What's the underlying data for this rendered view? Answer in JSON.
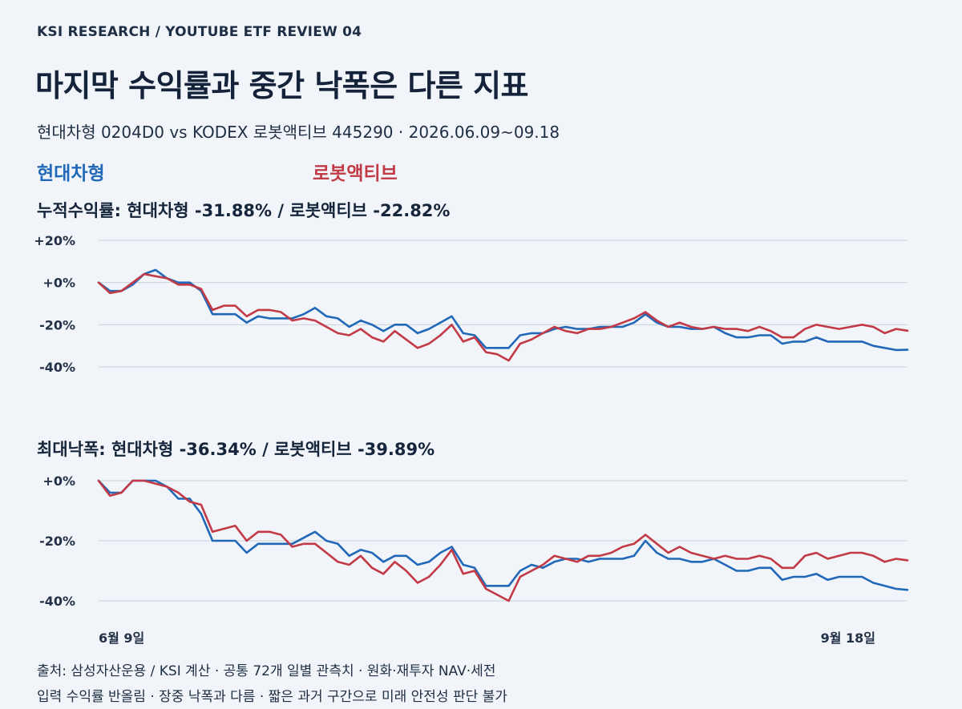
{
  "header": {
    "kicker": "KSI RESEARCH / YOUTUBE ETF REVIEW 04",
    "title": "마지막 수익률과 중간 낙폭은 다른 지표",
    "subtitle": "현대차형 0204D0 vs KODEX 로봇액티브 445290 · 2026.06.09~09.18"
  },
  "legend": [
    {
      "label": "현대차형",
      "color": "#2169b8"
    },
    {
      "label": "로봇액티브",
      "color": "#c23a46"
    }
  ],
  "footer": {
    "line1": "출처: 삼성자산운용 / KSI 계산 · 공통 72개 일별 관측치 · 원화·재투자 NAV·세전",
    "line2": "입력 수익률 반올림 · 장중 낙폭과 다름 · 짧은 과거 구간으로 미래 안전성 판단 불가"
  },
  "chart_data": [
    {
      "type": "line",
      "title": "누적수익률: 현대차형 -31.88% / 로봇액티브 -22.82%",
      "y_tick_labels": [
        "+20%",
        "+0%",
        "-20%",
        "-40%"
      ],
      "y_ticks": [
        20,
        0,
        -20,
        -40
      ],
      "ylim": [
        -40,
        20
      ],
      "x_tick_labels": [
        "6월 9일",
        "9월 18일"
      ],
      "x_tick_index": [
        0,
        71
      ],
      "grid": true,
      "series": [
        {
          "name": "현대차형",
          "color": "#2169b8",
          "values": [
            0,
            -4,
            -4,
            -1,
            4,
            6,
            2,
            0,
            0,
            -4,
            -15,
            -15,
            -15,
            -19,
            -16,
            -17,
            -17,
            -17,
            -15,
            -12,
            -16,
            -17,
            -21,
            -18,
            -20,
            -23,
            -20,
            -20,
            -24,
            -22,
            -19,
            -16,
            -24,
            -25,
            -31,
            -31,
            -31,
            -25,
            -24,
            -24,
            -22,
            -21,
            -22,
            -22,
            -21,
            -21,
            -21,
            -19,
            -15,
            -19,
            -21,
            -21,
            -22,
            -22,
            -21,
            -24,
            -26,
            -26,
            -25,
            -25,
            -29,
            -28,
            -28,
            -26,
            -28,
            -28,
            -28,
            -28,
            -30,
            -31,
            -32,
            -31.88
          ]
        },
        {
          "name": "로봇액티브",
          "color": "#c23a46",
          "values": [
            0,
            -5,
            -4,
            0,
            4,
            3,
            2,
            -1,
            -1,
            -3,
            -13,
            -11,
            -11,
            -16,
            -13,
            -13,
            -14,
            -18,
            -17,
            -18,
            -21,
            -24,
            -25,
            -22,
            -26,
            -28,
            -23,
            -27,
            -31,
            -29,
            -25,
            -20,
            -28,
            -26,
            -33,
            -34,
            -37,
            -29,
            -27,
            -24,
            -21,
            -23,
            -24,
            -22,
            -22,
            -21,
            -19,
            -17,
            -14,
            -18,
            -21,
            -19,
            -21,
            -22,
            -21,
            -22,
            -22,
            -23,
            -21,
            -23,
            -26,
            -26,
            -22,
            -20,
            -21,
            -22,
            -21,
            -20,
            -21,
            -24,
            -22,
            -22.82
          ]
        }
      ]
    },
    {
      "type": "line",
      "title": "최대낙폭: 현대차형 -36.34% / 로봇액티브 -39.89%",
      "y_tick_labels": [
        "+0%",
        "-20%",
        "-40%"
      ],
      "y_ticks": [
        0,
        -20,
        -40
      ],
      "ylim": [
        -40,
        0
      ],
      "x_tick_labels": [
        "6월 9일",
        "9월 18일"
      ],
      "x_tick_index": [
        0,
        71
      ],
      "grid": true,
      "series": [
        {
          "name": "현대차형",
          "color": "#2169b8",
          "values": [
            0,
            -4,
            -4,
            0,
            0,
            0,
            -2,
            -6,
            -6,
            -11,
            -20,
            -20,
            -20,
            -24,
            -21,
            -21,
            -21,
            -21,
            -19,
            -17,
            -20,
            -21,
            -25,
            -23,
            -24,
            -27,
            -25,
            -25,
            -28,
            -27,
            -24,
            -22,
            -28,
            -29,
            -35,
            -35,
            -35,
            -30,
            -28,
            -29,
            -27,
            -26,
            -26,
            -27,
            -26,
            -26,
            -26,
            -25,
            -20,
            -24,
            -26,
            -26,
            -27,
            -27,
            -26,
            -28,
            -30,
            -30,
            -29,
            -29,
            -33,
            -32,
            -32,
            -31,
            -33,
            -32,
            -32,
            -32,
            -34,
            -35,
            -36,
            -36.34
          ]
        },
        {
          "name": "로봇액티브",
          "color": "#c23a46",
          "values": [
            0,
            -5,
            -4,
            0,
            0,
            -1,
            -2,
            -4,
            -7,
            -8,
            -17,
            -16,
            -15,
            -20,
            -17,
            -17,
            -18,
            -22,
            -21,
            -21,
            -24,
            -27,
            -28,
            -25,
            -29,
            -31,
            -27,
            -30,
            -34,
            -32,
            -28,
            -23,
            -31,
            -30,
            -36,
            -38,
            -40,
            -32,
            -30,
            -28,
            -25,
            -26,
            -27,
            -25,
            -25,
            -24,
            -22,
            -21,
            -18,
            -21,
            -24,
            -22,
            -24,
            -25,
            -26,
            -25,
            -26,
            -26,
            -25,
            -26,
            -29,
            -29,
            -25,
            -24,
            -26,
            -25,
            -24,
            -24,
            -25,
            -27,
            -26,
            -26.5
          ]
        }
      ]
    }
  ]
}
